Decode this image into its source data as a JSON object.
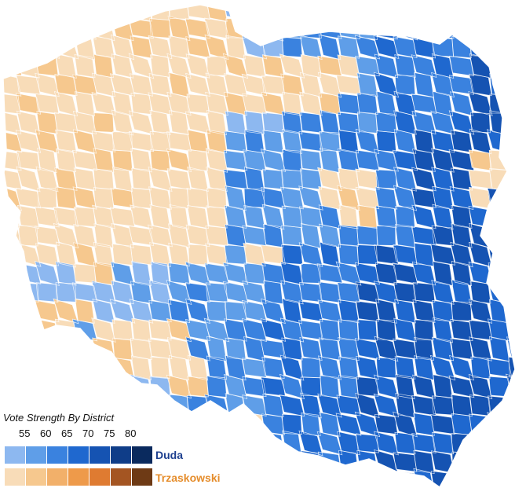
{
  "legend": {
    "title": "Vote Strength By District",
    "ticks": [
      "55",
      "60",
      "65",
      "70",
      "75",
      "80"
    ],
    "candidates": [
      {
        "name": "Duda",
        "color": "#1d3f8f"
      },
      {
        "name": "Trzaskowski",
        "color": "#e58d2c"
      }
    ],
    "duda_colors": [
      "#8db8f0",
      "#5f9ee8",
      "#3a82df",
      "#1f68cf",
      "#1553b2",
      "#0f3d88",
      "#0a2a5e"
    ],
    "trzaskowski_colors": [
      "#f8dcb8",
      "#f6c88e",
      "#f2b06a",
      "#ee9a4a",
      "#df7b31",
      "#a45522",
      "#6e3a15"
    ]
  },
  "map": {
    "border_color": "#ffffff"
  }
}
